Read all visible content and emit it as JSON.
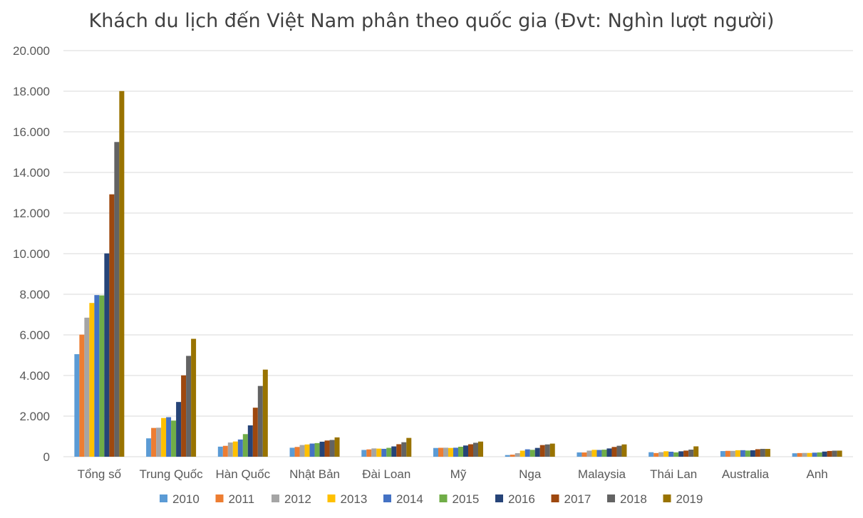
{
  "chart_data": {
    "type": "bar",
    "title": "Khách du lịch đến Việt Nam phân theo quốc gia (Đvt: Nghìn lượt người)",
    "xlabel": "",
    "ylabel": "",
    "ylim": [
      0,
      20000
    ],
    "yticks": [
      0,
      2000,
      4000,
      6000,
      8000,
      10000,
      12000,
      14000,
      16000,
      18000,
      20000
    ],
    "ytick_labels": [
      "0",
      "2.000",
      "4.000",
      "6.000",
      "8.000",
      "10.000",
      "12.000",
      "14.000",
      "16.000",
      "18.000",
      "20.000"
    ],
    "grid": true,
    "legend_position": "bottom",
    "categories": [
      "Tổng số",
      "Trung Quốc",
      "Hàn Quốc",
      "Nhật Bản",
      "Đài Loan",
      "Mỹ",
      "Nga",
      "Malaysia",
      "Thái Lan",
      "Australia",
      "Anh"
    ],
    "series": [
      {
        "name": "2010",
        "color": "#5B9BD5",
        "values": [
          5050,
          905,
          496,
          442,
          334,
          431,
          82,
          212,
          222,
          278,
          170
        ]
      },
      {
        "name": "2011",
        "color": "#ED7D31",
        "values": [
          6014,
          1417,
          536,
          481,
          361,
          440,
          101,
          210,
          181,
          289,
          180
        ]
      },
      {
        "name": "2012",
        "color": "#A5A5A5",
        "values": [
          6848,
          1429,
          700,
          576,
          409,
          443,
          174,
          300,
          225,
          289,
          186
        ]
      },
      {
        "name": "2013",
        "color": "#FFC000",
        "values": [
          7572,
          1907,
          749,
          604,
          399,
          432,
          298,
          339,
          269,
          320,
          185
        ]
      },
      {
        "name": "2014",
        "color": "#4472C4",
        "values": [
          7960,
          1947,
          848,
          648,
          389,
          443,
          365,
          333,
          247,
          322,
          200
        ]
      },
      {
        "name": "2015",
        "color": "#70AD47",
        "values": [
          7944,
          1780,
          1113,
          671,
          438,
          491,
          339,
          347,
          214,
          304,
          212
        ]
      },
      {
        "name": "2016",
        "color": "#264478",
        "values": [
          10013,
          2696,
          1544,
          740,
          508,
          553,
          434,
          408,
          267,
          320,
          254
        ]
      },
      {
        "name": "2017",
        "color": "#9E480E",
        "values": [
          12922,
          4008,
          2415,
          798,
          616,
          614,
          574,
          481,
          302,
          370,
          283
        ]
      },
      {
        "name": "2018",
        "color": "#636363",
        "values": [
          15498,
          4966,
          3485,
          826,
          714,
          687,
          606,
          540,
          350,
          387,
          298
        ]
      },
      {
        "name": "2019",
        "color": "#997300",
        "values": [
          18008,
          5806,
          4290,
          952,
          926,
          746,
          646,
          606,
          510,
          384,
          300
        ]
      }
    ]
  }
}
